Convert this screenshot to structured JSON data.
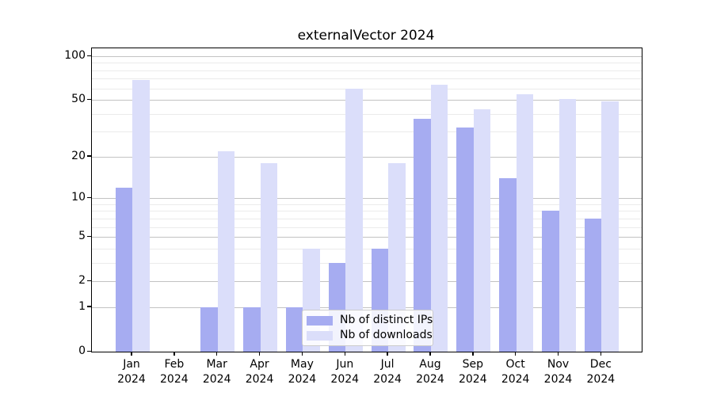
{
  "chart_data": {
    "type": "bar",
    "title": "externalVector 2024",
    "categories": [
      "Jan",
      "Feb",
      "Mar",
      "Apr",
      "May",
      "Jun",
      "Jul",
      "Aug",
      "Sep",
      "Oct",
      "Nov",
      "Dec"
    ],
    "x_tick_year_line": "2024",
    "series": [
      {
        "name": "Nb of distinct IPs",
        "color": "#a6acf1",
        "values": [
          12,
          0,
          1,
          1,
          1,
          3,
          4,
          37,
          32,
          14,
          8,
          7
        ]
      },
      {
        "name": "Nb of downloads",
        "color": "#dbdefa",
        "values": [
          69,
          0,
          22,
          18,
          4,
          60,
          18,
          64,
          43,
          55,
          51,
          49
        ]
      }
    ],
    "yscale": "log1p",
    "ylim": [
      0,
      114
    ],
    "yticks": [
      0,
      1,
      2,
      5,
      10,
      20,
      50,
      100
    ],
    "minor_yticks": [
      3,
      4,
      6,
      7,
      8,
      9,
      30,
      40,
      60,
      70,
      80,
      90
    ],
    "grid": "on",
    "legend_position": "lower center",
    "colors": {
      "spine": "#000000",
      "grid_major": "#c3c3c3",
      "grid_minor": "#ebebeb",
      "background": "#ffffff",
      "text": "#000000",
      "legend_border": "#cccccc"
    }
  }
}
